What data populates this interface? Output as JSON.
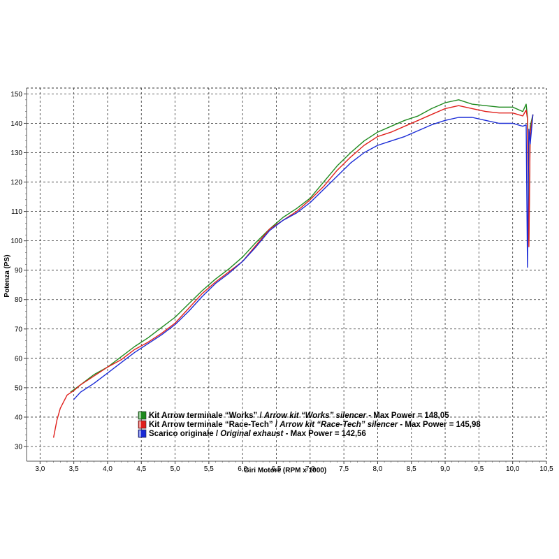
{
  "chart_data": {
    "type": "line",
    "xlabel": "Giri Motore (RPM x 1000)",
    "ylabel": "Potenza (PS)",
    "xlim": [
      2.8,
      10.5
    ],
    "ylim": [
      25,
      152
    ],
    "grid": true,
    "x_ticks": [
      "3,0",
      "3,5",
      "4,0",
      "4,5",
      "5,0",
      "5,5",
      "6,0",
      "6,5",
      "7,0",
      "7,5",
      "8,0",
      "8,5",
      "9,0",
      "9,5",
      "10,0",
      "10,5"
    ],
    "y_ticks": [
      "30",
      "40",
      "50",
      "60",
      "70",
      "80",
      "90",
      "100",
      "110",
      "120",
      "130",
      "140",
      "150"
    ],
    "legend_position": "bottom-center",
    "legend": [
      {
        "prefix": "Kit Arrow terminale “Works” / ",
        "italic": "Arrow kit “Works” silencer",
        "suffix": " - Max Power = 148,05",
        "color": "#1f8a1f"
      },
      {
        "prefix": "Kit Arrow terminale “Race-Tech” / ",
        "italic": "Arrow kit “Race-Tech” silencer",
        "suffix": " - Max Power = 145,98",
        "color": "#e0201c"
      },
      {
        "prefix": "Scarico originale / ",
        "italic": "Original exhaust",
        "suffix": " - Max Power = 142,56",
        "color": "#1a2bd6"
      }
    ],
    "series": [
      {
        "color": "#1f8a1f",
        "x": [
          3.45,
          3.6,
          3.8,
          4.0,
          4.2,
          4.4,
          4.6,
          4.8,
          5.0,
          5.2,
          5.4,
          5.6,
          5.8,
          6.0,
          6.2,
          6.4,
          6.6,
          6.8,
          7.0,
          7.2,
          7.4,
          7.6,
          7.8,
          8.0,
          8.2,
          8.4,
          8.6,
          8.8,
          9.0,
          9.2,
          9.4,
          9.6,
          9.8,
          10.0,
          10.15,
          10.2,
          10.22,
          10.24,
          10.26,
          10.3
        ],
        "y": [
          48.5,
          51,
          54.5,
          57,
          60.5,
          64,
          67,
          70.5,
          74,
          78.5,
          83,
          87,
          90.5,
          94.5,
          99.5,
          104,
          108,
          111,
          114.5,
          120,
          125.5,
          130,
          134,
          137,
          139,
          141,
          142.5,
          145,
          147,
          148,
          146.5,
          146,
          145.5,
          145.5,
          144,
          146.5,
          142,
          100,
          139,
          143
        ]
      },
      {
        "color": "#e0201c",
        "x": [
          3.2,
          3.25,
          3.3,
          3.4,
          3.5,
          3.6,
          3.8,
          4.0,
          4.2,
          4.4,
          4.6,
          4.8,
          5.0,
          5.2,
          5.4,
          5.6,
          5.8,
          6.0,
          6.2,
          6.4,
          6.6,
          6.8,
          7.0,
          7.2,
          7.4,
          7.6,
          7.8,
          8.0,
          8.2,
          8.4,
          8.6,
          8.8,
          9.0,
          9.2,
          9.4,
          9.6,
          9.8,
          10.0,
          10.15,
          10.2,
          10.22,
          10.24,
          10.26,
          10.3
        ],
        "y": [
          33,
          39,
          43,
          47.5,
          49,
          51,
          54,
          57,
          59.5,
          63,
          65.5,
          68.5,
          72,
          77,
          82,
          86,
          89.5,
          93,
          98.5,
          104,
          107,
          110,
          114,
          118.5,
          124,
          128.5,
          132.5,
          135.5,
          137,
          139,
          141,
          143,
          145,
          146,
          145,
          144,
          143.5,
          143.5,
          142.5,
          144.5,
          141.5,
          98,
          137,
          143
        ]
      },
      {
        "color": "#1a2bd6",
        "x": [
          3.5,
          3.6,
          3.8,
          4.0,
          4.2,
          4.4,
          4.6,
          4.8,
          5.0,
          5.2,
          5.4,
          5.6,
          5.8,
          6.0,
          6.2,
          6.4,
          6.6,
          6.8,
          7.0,
          7.2,
          7.4,
          7.6,
          7.8,
          8.0,
          8.2,
          8.4,
          8.6,
          8.8,
          9.0,
          9.2,
          9.4,
          9.6,
          9.8,
          10.0,
          10.15,
          10.2,
          10.22,
          10.24,
          10.26,
          10.3
        ],
        "y": [
          46,
          48.5,
          51.5,
          55,
          58.5,
          62,
          65,
          68,
          71.5,
          76,
          81,
          85.5,
          89,
          93,
          98,
          103.5,
          107,
          109.5,
          113,
          117.5,
          122,
          126.5,
          130,
          132.5,
          134,
          135.5,
          137.5,
          139.5,
          141,
          142,
          142,
          141,
          140,
          140,
          139,
          139.5,
          91,
          138,
          133,
          143
        ]
      }
    ]
  }
}
